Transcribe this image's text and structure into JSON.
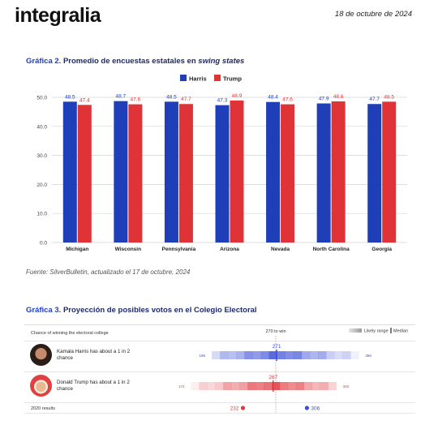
{
  "header": {
    "logo": "integralia",
    "date": "18  de octubre de 2024"
  },
  "figure2": {
    "number": "Gráfica 2.",
    "title_main": "Promedio de encuestas estatales en ",
    "title_italic": "swing states",
    "source": "Fuente: SilverBulletin, actualizado el 17 de octubre, 2024"
  },
  "chart_data": [
    {
      "type": "bar",
      "title": "Promedio de encuestas estatales en swing states",
      "categories": [
        "Michigan",
        "Wisconsin",
        "Pennsylvania",
        "Arizona",
        "Nevada",
        "North Carolina",
        "Georgia"
      ],
      "series": [
        {
          "name": "Harris",
          "color": "#1f3fb8",
          "values": [
            48.5,
            48.7,
            48.5,
            47.3,
            48.4,
            47.9,
            47.7
          ]
        },
        {
          "name": "Trump",
          "color": "#e03338",
          "values": [
            47.4,
            47.6,
            47.7,
            48.9,
            47.6,
            48.6,
            48.5
          ]
        }
      ],
      "ylim": [
        0,
        50
      ],
      "yticks": [
        "0.0",
        "10.0",
        "20.0",
        "30.0",
        "40.0",
        "50.0"
      ],
      "grid": true,
      "legend": "top-center"
    },
    {
      "type": "range",
      "title": "Chance of winning the electoral college",
      "threshold_label": "270 to win",
      "legend": {
        "range": "Likely range",
        "median": "Median"
      },
      "candidates": [
        {
          "name": "Kamala Harris",
          "label": "Kamala Harris has about a 1 in 2 chance",
          "color": "#3b4fd8",
          "min": 196,
          "max": 366,
          "median": 271
        },
        {
          "name": "Donald Trump",
          "label": "Donald Trump has about a 1 in 2 chance",
          "color": "#e0383e",
          "min": 172,
          "max": 340,
          "median": 267
        }
      ],
      "results_2020": {
        "label": "2020 results",
        "trump": 232,
        "harris": 306
      }
    }
  ],
  "figure3": {
    "number": "Gráfica 3.",
    "title_main": "Proyección de posibles votos en el Colegio Electoral"
  }
}
